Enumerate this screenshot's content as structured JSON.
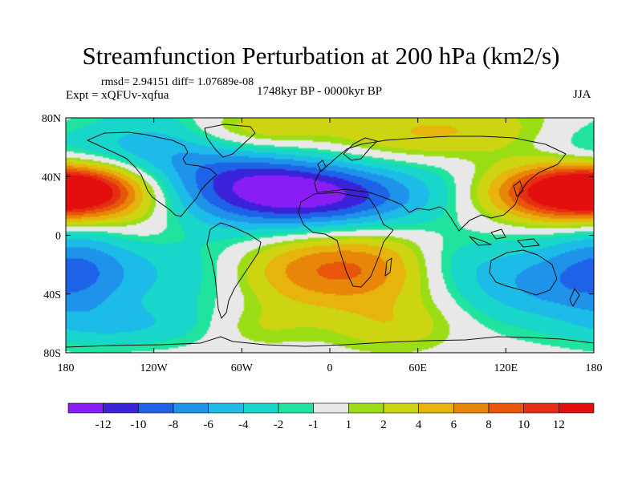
{
  "figure": {
    "title": "Streamfunction Perturbation at 200 hPa (km2/s)",
    "stats": "rmsd= 2.94151 diff= 1.07689e-08",
    "experiment": "Expt = xQFUv-xqfua",
    "period": "1748kyr BP - 0000kyr BP",
    "season": "JJA"
  },
  "axes": {
    "lat_ticks": [
      "80N",
      "40N",
      "0",
      "40S",
      "80S"
    ],
    "lon_ticks": [
      "180",
      "120W",
      "60W",
      "0",
      "60E",
      "120E",
      "180"
    ]
  },
  "colorbar": {
    "labels": [
      "-12",
      "-10",
      "-8",
      "-6",
      "-4",
      "-2",
      "-1",
      "1",
      "2",
      "4",
      "6",
      "8",
      "10",
      "12"
    ],
    "colors": [
      "#8a1df5",
      "#3a22d8",
      "#1e62e8",
      "#1f92ea",
      "#1cbbe8",
      "#18d6c9",
      "#20e49d",
      "#e8e8e8",
      "#9bde16",
      "#cdd412",
      "#e6b40c",
      "#e8860a",
      "#e8560a",
      "#e52e12",
      "#e30e0e"
    ]
  },
  "field": {
    "blobs": [
      {
        "lon": -15,
        "lat": 26,
        "w": 58,
        "h": 17,
        "v": -13
      },
      {
        "lon": -55,
        "lat": 42,
        "w": 40,
        "h": 15,
        "v": -4
      },
      {
        "lon": -115,
        "lat": 60,
        "w": 38,
        "h": 20,
        "v": -5
      },
      {
        "lon": -95,
        "lat": -25,
        "w": 40,
        "h": 22,
        "v": -4
      },
      {
        "lon": -170,
        "lat": -22,
        "w": 28,
        "h": 25,
        "v": -6
      },
      {
        "lon": -135,
        "lat": -62,
        "w": 40,
        "h": 10,
        "v": -3
      },
      {
        "lon": 135,
        "lat": -32,
        "w": 42,
        "h": 20,
        "v": -6
      },
      {
        "lon": 80,
        "lat": -18,
        "w": 25,
        "h": 15,
        "v": -3
      },
      {
        "lon": 95,
        "lat": 55,
        "w": 48,
        "h": 16,
        "v": -4
      },
      {
        "lon": 175,
        "lat": 55,
        "w": 30,
        "h": 15,
        "v": -3
      },
      {
        "lon": -170,
        "lat": 30,
        "w": 35,
        "h": 13,
        "v": 12
      },
      {
        "lon": 160,
        "lat": 30,
        "w": 40,
        "h": 14,
        "v": 12
      },
      {
        "lon": 80,
        "lat": 65,
        "w": 55,
        "h": 16,
        "v": 7
      },
      {
        "lon": -55,
        "lat": 72,
        "w": 35,
        "h": 11,
        "v": 4
      },
      {
        "lon": 20,
        "lat": -22,
        "w": 50,
        "h": 20,
        "v": 7
      },
      {
        "lon": -30,
        "lat": -25,
        "w": 45,
        "h": 18,
        "v": 3
      },
      {
        "lon": -130,
        "lat": 5,
        "w": 30,
        "h": 12,
        "v": 2
      },
      {
        "lon": 45,
        "lat": -62,
        "w": 30,
        "h": 12,
        "v": 3
      },
      {
        "lon": -50,
        "lat": -62,
        "w": 25,
        "h": 10,
        "v": 2
      }
    ]
  }
}
